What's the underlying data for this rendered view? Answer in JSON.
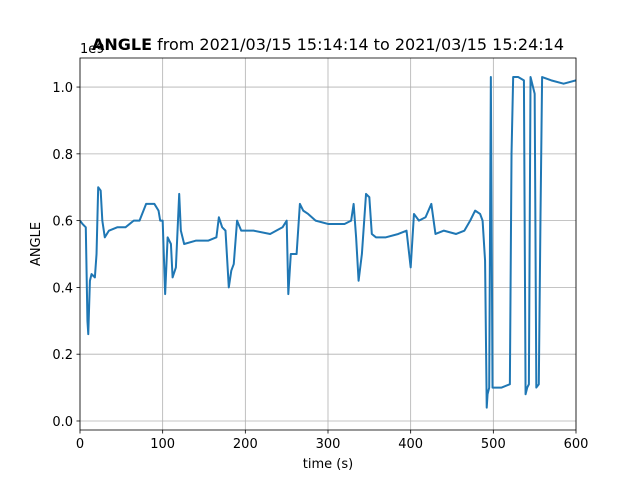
{
  "chart_data": {
    "type": "line",
    "title": {
      "name": "ANGLE",
      "rest": "from 2021/03/15 15:14:14 to 2021/03/15 15:24:14"
    },
    "x_label": "time (s)",
    "y_label": "ANGLE",
    "y_offset_label": "1e9",
    "x": [
      0,
      3,
      7,
      9,
      10,
      12,
      14,
      18,
      20,
      22,
      25,
      27,
      30,
      35,
      45,
      55,
      65,
      72,
      80,
      90,
      95,
      97,
      100,
      103,
      106,
      110,
      112,
      116,
      120,
      122,
      126,
      140,
      155,
      165,
      168,
      172,
      176,
      180,
      183,
      186,
      190,
      195,
      210,
      230,
      245,
      250,
      252,
      255,
      262,
      266,
      270,
      276,
      285,
      300,
      320,
      328,
      331,
      334,
      337,
      341,
      346,
      350,
      353,
      358,
      370,
      385,
      395,
      400,
      404,
      410,
      418,
      425,
      430,
      440,
      455,
      465,
      472,
      478,
      484,
      487,
      490,
      492,
      493,
      495,
      497,
      499,
      501,
      510,
      520,
      522,
      524,
      530,
      537,
      539,
      541,
      543,
      545,
      548,
      550,
      552,
      555,
      557,
      559,
      570,
      585,
      600
    ],
    "series": [
      {
        "name": "ANGLE",
        "color": "#1f77b4",
        "values": [
          0.6,
          0.59,
          0.58,
          0.3,
          0.26,
          0.42,
          0.44,
          0.43,
          0.5,
          0.7,
          0.69,
          0.6,
          0.55,
          0.57,
          0.58,
          0.58,
          0.6,
          0.6,
          0.65,
          0.65,
          0.63,
          0.6,
          0.6,
          0.38,
          0.55,
          0.53,
          0.43,
          0.46,
          0.68,
          0.57,
          0.53,
          0.54,
          0.54,
          0.55,
          0.61,
          0.58,
          0.57,
          0.4,
          0.45,
          0.47,
          0.6,
          0.57,
          0.57,
          0.56,
          0.58,
          0.6,
          0.38,
          0.5,
          0.5,
          0.65,
          0.63,
          0.62,
          0.6,
          0.59,
          0.59,
          0.6,
          0.65,
          0.55,
          0.42,
          0.5,
          0.68,
          0.67,
          0.56,
          0.55,
          0.55,
          0.56,
          0.57,
          0.46,
          0.62,
          0.6,
          0.61,
          0.65,
          0.56,
          0.57,
          0.56,
          0.57,
          0.6,
          0.63,
          0.62,
          0.6,
          0.48,
          0.04,
          0.08,
          0.1,
          1.03,
          0.1,
          0.1,
          0.1,
          0.11,
          0.8,
          1.03,
          1.03,
          1.02,
          0.08,
          0.1,
          0.11,
          1.03,
          1.0,
          0.98,
          0.1,
          0.11,
          0.6,
          1.03,
          1.02,
          1.01,
          1.02
        ]
      }
    ],
    "xlim": [
      0,
      600
    ],
    "xticks": [
      0,
      100,
      200,
      300,
      400,
      500,
      600
    ],
    "ylim": [
      -0.027,
      1.087
    ],
    "yticks": [
      {
        "value": 0,
        "label": "0.0"
      },
      0.2,
      0.4,
      0.6,
      0.8,
      {
        "value": 1,
        "label": "1.0"
      }
    ],
    "grid": true
  }
}
